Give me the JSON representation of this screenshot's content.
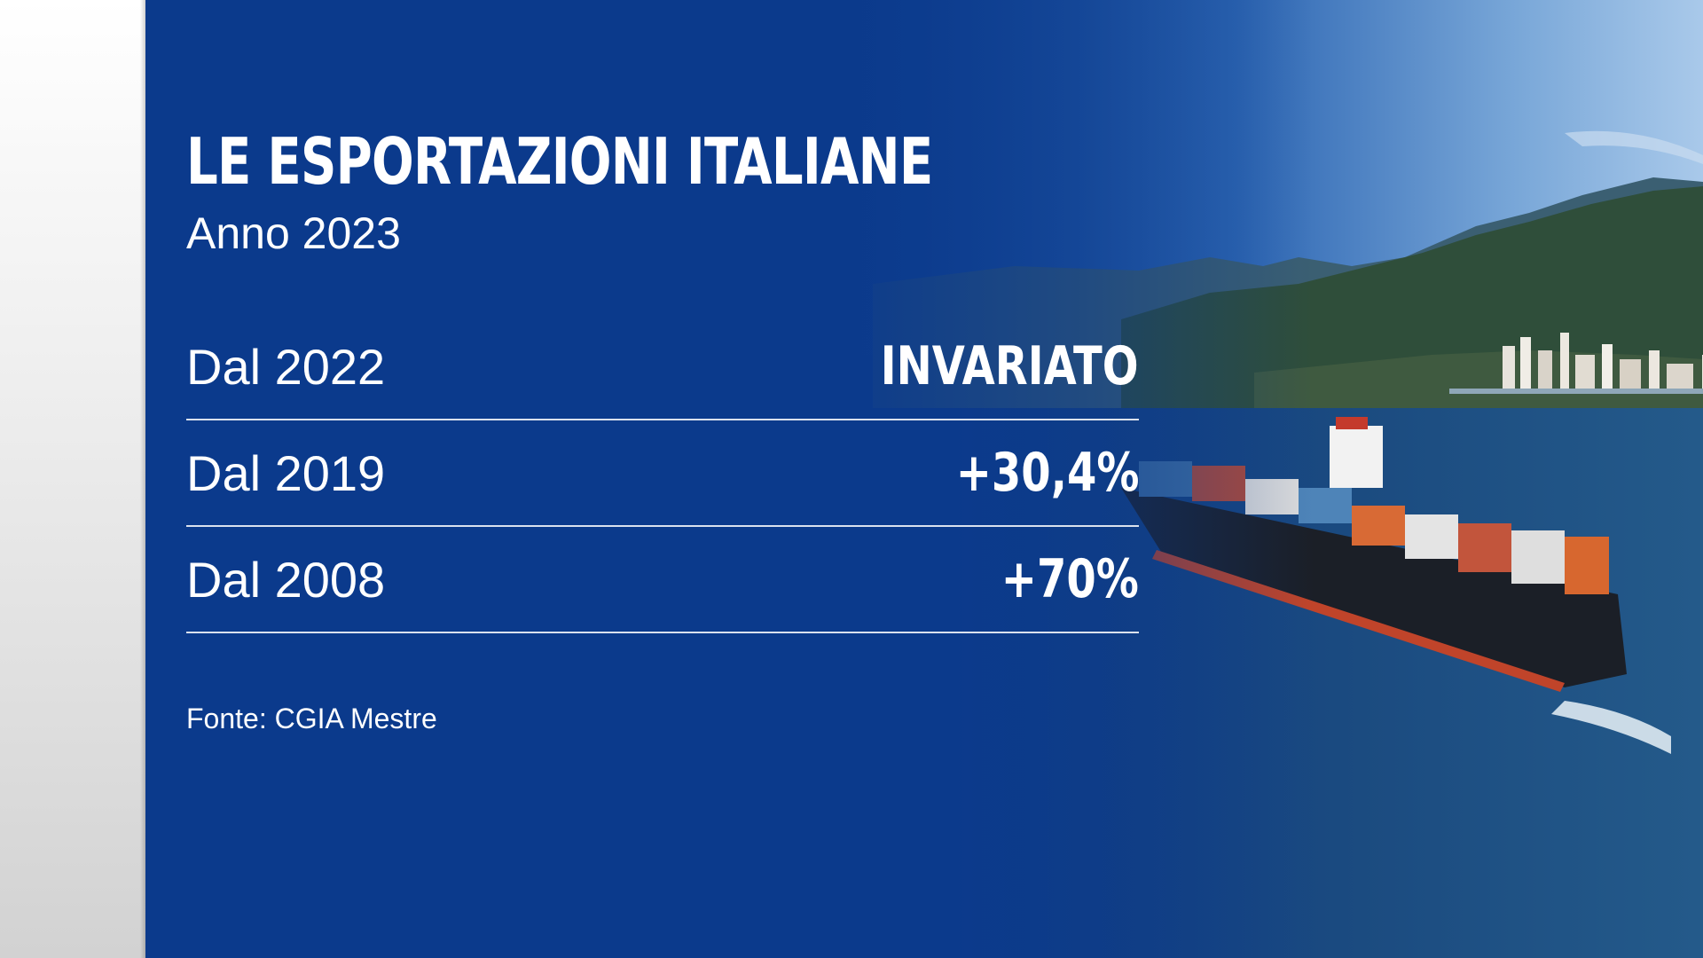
{
  "graphic": {
    "title": "LE ESPORTAZIONI ITALIANE",
    "subtitle": "Anno 2023",
    "rows": [
      {
        "label": "Dal 2022",
        "value": "INVARIATO"
      },
      {
        "label": "Dal 2019",
        "value": "+30,4%"
      },
      {
        "label": "Dal 2008",
        "value": "+70%"
      }
    ],
    "source": "Fonte: CGIA Mestre"
  },
  "background": {
    "image_icon": "container-ship-photo"
  },
  "colors": {
    "panel_blue": "#0b3a8c",
    "text": "#ffffff",
    "left_strip": "#e6e6e6"
  }
}
